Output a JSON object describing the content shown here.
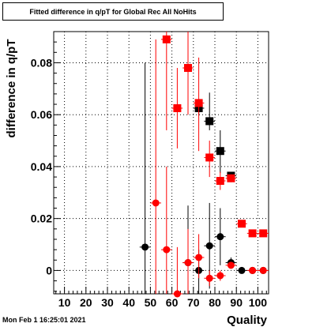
{
  "title": "Fitted difference in q/pT  for Global Rec All NoHits",
  "timestamp": "Mon Feb  1 16:25:01 2021",
  "chart_data": {
    "type": "scatter",
    "title": "Fitted difference in q/pT  for Global Rec All NoHits",
    "xlabel": "Quality",
    "ylabel": "difference in q/pT",
    "xlim": [
      5,
      105
    ],
    "ylim": [
      -0.009,
      0.092
    ],
    "x_ticks": [
      10,
      20,
      30,
      40,
      50,
      60,
      70,
      80,
      90,
      100
    ],
    "y_ticks": [
      0,
      0.02,
      0.04,
      0.06,
      0.08
    ],
    "x_tick_labels": [
      "10",
      "20",
      "30",
      "40",
      "50",
      "60",
      "70",
      "80",
      "90",
      "100"
    ],
    "y_tick_labels": [
      "0",
      "0.02",
      "0.04",
      "0.06",
      "0.08"
    ],
    "grid": true,
    "series": [
      {
        "color": "#000000",
        "marker": "circle-and-square",
        "points": [
          {
            "x": 47.5,
            "y": 0.009,
            "ylo": -0.009,
            "yhi": 0.08,
            "m": "circle"
          },
          {
            "x": 67.5,
            "y": 0.003,
            "ylo": -0.009,
            "yhi": 0.025,
            "m": "circle"
          },
          {
            "x": 72.5,
            "y": 0.0,
            "ylo": -0.009,
            "yhi": 0.008,
            "m": "circle"
          },
          {
            "x": 72.5,
            "y": 0.0625,
            "ylo": 0.06,
            "yhi": 0.065,
            "m": "square"
          },
          {
            "x": 77.5,
            "y": 0.0095,
            "ylo": -0.007,
            "yhi": 0.026,
            "m": "circle"
          },
          {
            "x": 77.5,
            "y": 0.0575,
            "ylo": 0.054,
            "yhi": 0.0685,
            "m": "square"
          },
          {
            "x": 82.5,
            "y": 0.013,
            "ylo": 0.002,
            "yhi": 0.024,
            "m": "circle"
          },
          {
            "x": 82.5,
            "y": 0.046,
            "ylo": 0.0375,
            "yhi": 0.054,
            "m": "square"
          },
          {
            "x": 87.5,
            "y": 0.003,
            "ylo": 0.001,
            "yhi": 0.005,
            "m": "circle"
          },
          {
            "x": 87.5,
            "y": 0.0365,
            "ylo": 0.036,
            "yhi": 0.038,
            "m": "square"
          },
          {
            "x": 92.5,
            "y": 0.0,
            "ylo": -0.001,
            "yhi": 0.001,
            "m": "circle"
          },
          {
            "x": 97.5,
            "y": 0.0,
            "ylo": -0.001,
            "yhi": 0.001,
            "m": "circle"
          },
          {
            "x": 102.5,
            "y": 0.0,
            "ylo": -0.001,
            "yhi": 0.001,
            "m": "circle"
          }
        ]
      },
      {
        "color": "#ff0000",
        "marker": "circle-and-square",
        "points": [
          {
            "x": 52.5,
            "y": 0.026,
            "ylo": -0.009,
            "yhi": 0.089,
            "m": "circle"
          },
          {
            "x": 57.5,
            "y": 0.008,
            "ylo": -0.009,
            "yhi": 0.04,
            "m": "circle"
          },
          {
            "x": 57.5,
            "y": 0.089,
            "ylo": 0.054,
            "yhi": 0.092,
            "m": "square"
          },
          {
            "x": 62.5,
            "y": -0.009,
            "ylo": -0.009,
            "yhi": 0.009,
            "m": "circle"
          },
          {
            "x": 62.5,
            "y": 0.0625,
            "ylo": 0.047,
            "yhi": 0.078,
            "m": "square"
          },
          {
            "x": 67.5,
            "y": 0.003,
            "ylo": -0.009,
            "yhi": 0.016,
            "m": "circle"
          },
          {
            "x": 67.5,
            "y": 0.078,
            "ylo": 0.06,
            "yhi": 0.092,
            "m": "square"
          },
          {
            "x": 72.5,
            "y": 0.005,
            "ylo": -0.003,
            "yhi": 0.014,
            "m": "circle"
          },
          {
            "x": 72.5,
            "y": 0.0645,
            "ylo": 0.046,
            "yhi": 0.082,
            "m": "square"
          },
          {
            "x": 77.5,
            "y": -0.003,
            "ylo": -0.006,
            "yhi": 0.0,
            "m": "circle"
          },
          {
            "x": 77.5,
            "y": 0.0435,
            "ylo": 0.036,
            "yhi": 0.05,
            "m": "square"
          },
          {
            "x": 82.5,
            "y": -0.002,
            "ylo": -0.004,
            "yhi": 0.0,
            "m": "circle"
          },
          {
            "x": 82.5,
            "y": 0.0345,
            "ylo": 0.031,
            "yhi": 0.038,
            "m": "square"
          },
          {
            "x": 87.5,
            "y": 0.002,
            "ylo": 0.001,
            "yhi": 0.003,
            "m": "circle"
          },
          {
            "x": 87.5,
            "y": 0.0355,
            "ylo": 0.034,
            "yhi": 0.037,
            "m": "square"
          },
          {
            "x": 92.5,
            "y": 0.018,
            "ylo": 0.017,
            "yhi": 0.019,
            "m": "square"
          },
          {
            "x": 97.5,
            "y": 0.0,
            "ylo": -0.0005,
            "yhi": 0.0005,
            "m": "circle"
          },
          {
            "x": 97.5,
            "y": 0.0143,
            "ylo": 0.0135,
            "yhi": 0.015,
            "m": "square"
          },
          {
            "x": 102.5,
            "y": 0.0,
            "ylo": -0.0005,
            "yhi": 0.0005,
            "m": "circle"
          },
          {
            "x": 102.5,
            "y": 0.0143,
            "ylo": 0.0135,
            "yhi": 0.015,
            "m": "square"
          }
        ]
      }
    ]
  }
}
